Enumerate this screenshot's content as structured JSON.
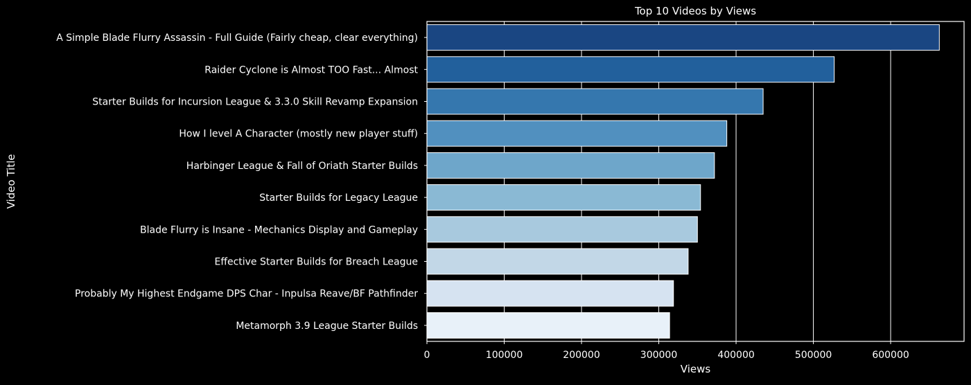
{
  "chart_data": {
    "type": "bar",
    "orientation": "horizontal",
    "title": "Top 10 Videos by Views",
    "xlabel": "Views",
    "ylabel": "Video Title",
    "xlim": [
      0,
      695000
    ],
    "x_ticks": [
      0,
      100000,
      200000,
      300000,
      400000,
      500000,
      600000
    ],
    "grid": true,
    "categories": [
      "A Simple Blade Flurry Assassin - Full Guide (Fairly cheap, clear everything)",
      "Raider Cyclone is Almost TOO Fast... Almost",
      "Starter Builds for Incursion League & 3.3.0 Skill Revamp Expansion",
      "How I level A Character (mostly new player stuff)",
      "Harbinger League & Fall of Oriath Starter Builds",
      "Starter Builds for Legacy League",
      "Blade Flurry is Insane - Mechanics Display and Gameplay",
      "Effective Starter Builds for Breach League",
      "Probably My Highest Endgame DPS Char - Inpulsa Reave/BF Pathfinder",
      "Metamorph 3.9 League Starter Builds"
    ],
    "values": [
      663000,
      527000,
      435000,
      388000,
      372000,
      354000,
      350000,
      338000,
      319000,
      314000
    ],
    "colors": [
      "#1a4682",
      "#22609c",
      "#3577ae",
      "#5190bf",
      "#6ea6ca",
      "#8ab9d4",
      "#a8c9de",
      "#c2d7e7",
      "#d6e3f1",
      "#e8f1f9"
    ],
    "background": "#000000",
    "foreground": "#ffffff"
  }
}
